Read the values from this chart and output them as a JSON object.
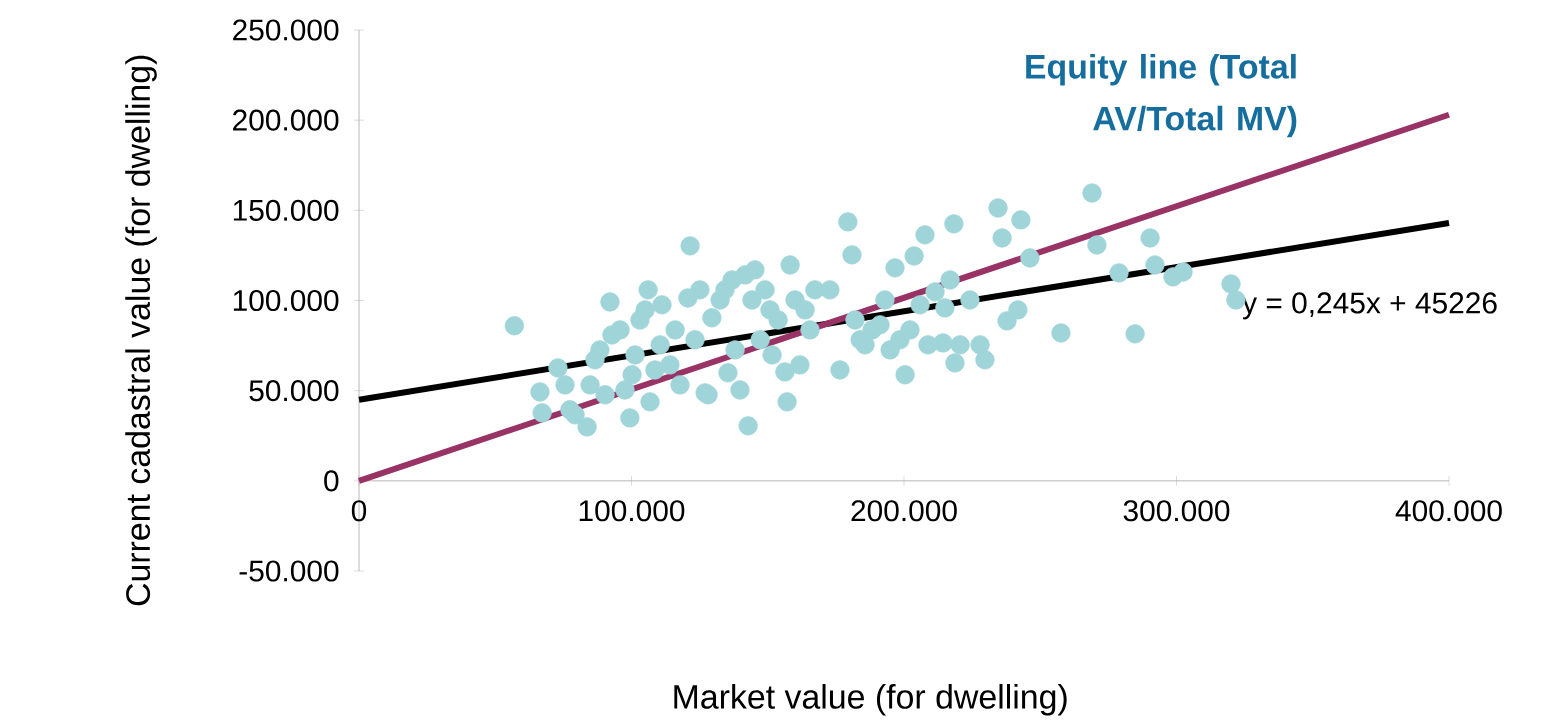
{
  "chart_data": {
    "type": "scatter",
    "xlabel": "Market value (for dwelling)",
    "ylabel": "Current cadastral value (for dwelling)",
    "xlim": [
      0,
      400000
    ],
    "ylim": [
      -50000,
      250000
    ],
    "xticks": [
      0,
      {
        "value": 100000,
        "label": "100.000"
      },
      {
        "value": 200000,
        "label": "200.000"
      },
      {
        "value": 300000,
        "label": "300.000"
      },
      {
        "value": 400000,
        "label": "400.000"
      }
    ],
    "yticks": [
      {
        "value": -50000,
        "label": "-50.000"
      },
      0,
      {
        "value": 50000,
        "label": "50.000"
      },
      {
        "value": 100000,
        "label": "100.000"
      },
      {
        "value": 150000,
        "label": "150.000"
      },
      {
        "value": 200000,
        "label": "200.000"
      },
      {
        "value": 250000,
        "label": "250.000"
      }
    ],
    "annotations": [
      "y = 0,245x + 45226"
    ],
    "series": [
      {
        "marker": "circle",
        "color": "#9fd4d8",
        "x": [
          57000,
          66400,
          67200,
          73000,
          75600,
          77400,
          79300,
          83700,
          84800,
          86600,
          88400,
          90300,
          92100,
          92800,
          95800,
          97600,
          99400,
          100200,
          101300,
          103100,
          105000,
          106100,
          106800,
          108600,
          110500,
          111200,
          114100,
          116000,
          117800,
          120700,
          121500,
          123300,
          125100,
          127000,
          128100,
          129500,
          132500,
          134300,
          135400,
          136900,
          138000,
          139800,
          141700,
          142800,
          144200,
          145300,
          147200,
          149000,
          150800,
          151600,
          153800,
          156300,
          158200,
          160000,
          161800,
          163700,
          165500,
          167300,
          172800,
          176500,
          157100,
          179400,
          180900,
          182000,
          183900,
          185700,
          188300,
          191200,
          193000,
          194900,
          196700,
          198500,
          200400,
          202200,
          205900,
          207700,
          211400,
          215000,
          216900,
          220600,
          224200,
          227900,
          229700,
          208800,
          218700,
          234500,
          236000,
          242900,
          246200,
          237800,
          241800,
          257600,
          269000,
          270800,
          278900,
          284800,
          290300,
          292100,
          298700,
          302400,
          320000,
          321800,
          203700,
          218300,
          214300
        ],
        "values": [
          86000,
          49300,
          37700,
          62600,
          53200,
          39400,
          36600,
          29900,
          53200,
          67100,
          72600,
          47700,
          99200,
          80900,
          83700,
          50400,
          34900,
          58800,
          69800,
          89200,
          94800,
          105900,
          43800,
          61500,
          75400,
          97600,
          64300,
          83700,
          53200,
          101400,
          130300,
          78200,
          105900,
          48800,
          47700,
          90400,
          100300,
          105900,
          59900,
          111400,
          72600,
          50400,
          114200,
          30500,
          100300,
          117000,
          78200,
          105900,
          94800,
          69800,
          89200,
          60400,
          119700,
          100300,
          64300,
          94800,
          83700,
          105900,
          105900,
          61500,
          43800,
          143600,
          125300,
          89200,
          78200,
          75400,
          83700,
          86500,
          100300,
          72600,
          118100,
          78200,
          58800,
          83700,
          97600,
          136400,
          104800,
          95900,
          111400,
          75400,
          100300,
          75400,
          67100,
          75400,
          65400,
          151300,
          134700,
          144700,
          123600,
          88700,
          94800,
          82000,
          159600,
          130800,
          115300,
          81500,
          134700,
          119700,
          113100,
          115800,
          109200,
          100300,
          124700,
          142500,
          76500
        ]
      },
      {
        "type": "line",
        "color": "#000000",
        "x": [
          0,
          400000
        ],
        "values": [
          45000,
          143000
        ]
      },
      {
        "type": "line",
        "name": "Equity line (Total AV/Total MV)",
        "color": "#993366",
        "x": [
          0,
          400000
        ],
        "values": [
          0,
          203000
        ]
      }
    ]
  }
}
